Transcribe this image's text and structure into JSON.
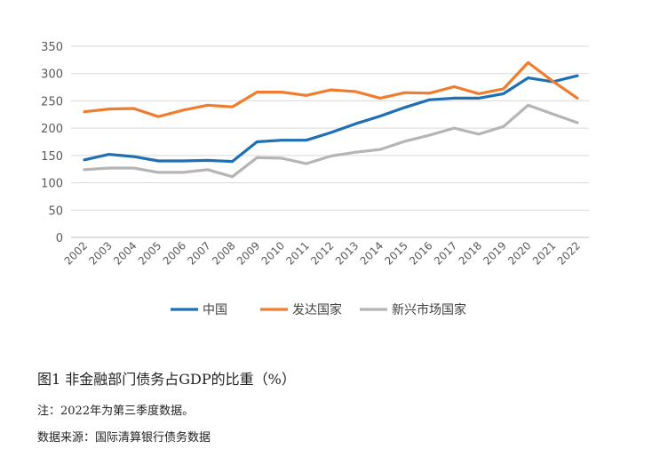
{
  "chart_data": {
    "type": "line",
    "categories": [
      "2002",
      "2003",
      "2004",
      "2005",
      "2006",
      "2007",
      "2008",
      "2009",
      "2010",
      "2011",
      "2012",
      "2013",
      "2014",
      "2015",
      "2016",
      "2017",
      "2018",
      "2019",
      "2020",
      "2021",
      "2022"
    ],
    "series": [
      {
        "name": "中国",
        "color": "#1f6fb5",
        "values": [
          142,
          152,
          148,
          140,
          140,
          141,
          139,
          175,
          178,
          178,
          192,
          208,
          222,
          238,
          252,
          255,
          255,
          263,
          292,
          285,
          296
        ]
      },
      {
        "name": "发达国家",
        "color": "#ef7d2f",
        "values": [
          230,
          235,
          236,
          221,
          233,
          242,
          239,
          266,
          266,
          260,
          270,
          267,
          255,
          265,
          264,
          276,
          263,
          272,
          320,
          286,
          255
        ]
      },
      {
        "name": "新兴市场国家",
        "color": "#b5b5b5",
        "values": [
          124,
          127,
          127,
          119,
          119,
          124,
          111,
          146,
          145,
          135,
          149,
          156,
          161,
          176,
          187,
          200,
          189,
          203,
          242,
          226,
          210
        ]
      }
    ],
    "yticks": [
      "0",
      "50",
      "100",
      "150",
      "200",
      "250",
      "300",
      "350"
    ],
    "ylim": [
      0,
      350
    ],
    "grid": true,
    "legend_position": "bottom",
    "title": "图1 非金融部门债务占GDP的比重（%）"
  },
  "caption": {
    "title": "图1 非金融部门债务占GDP的比重（%）",
    "note": "注：2022年为第三季度数据。",
    "source": "数据来源：国际清算银行债务数据"
  }
}
